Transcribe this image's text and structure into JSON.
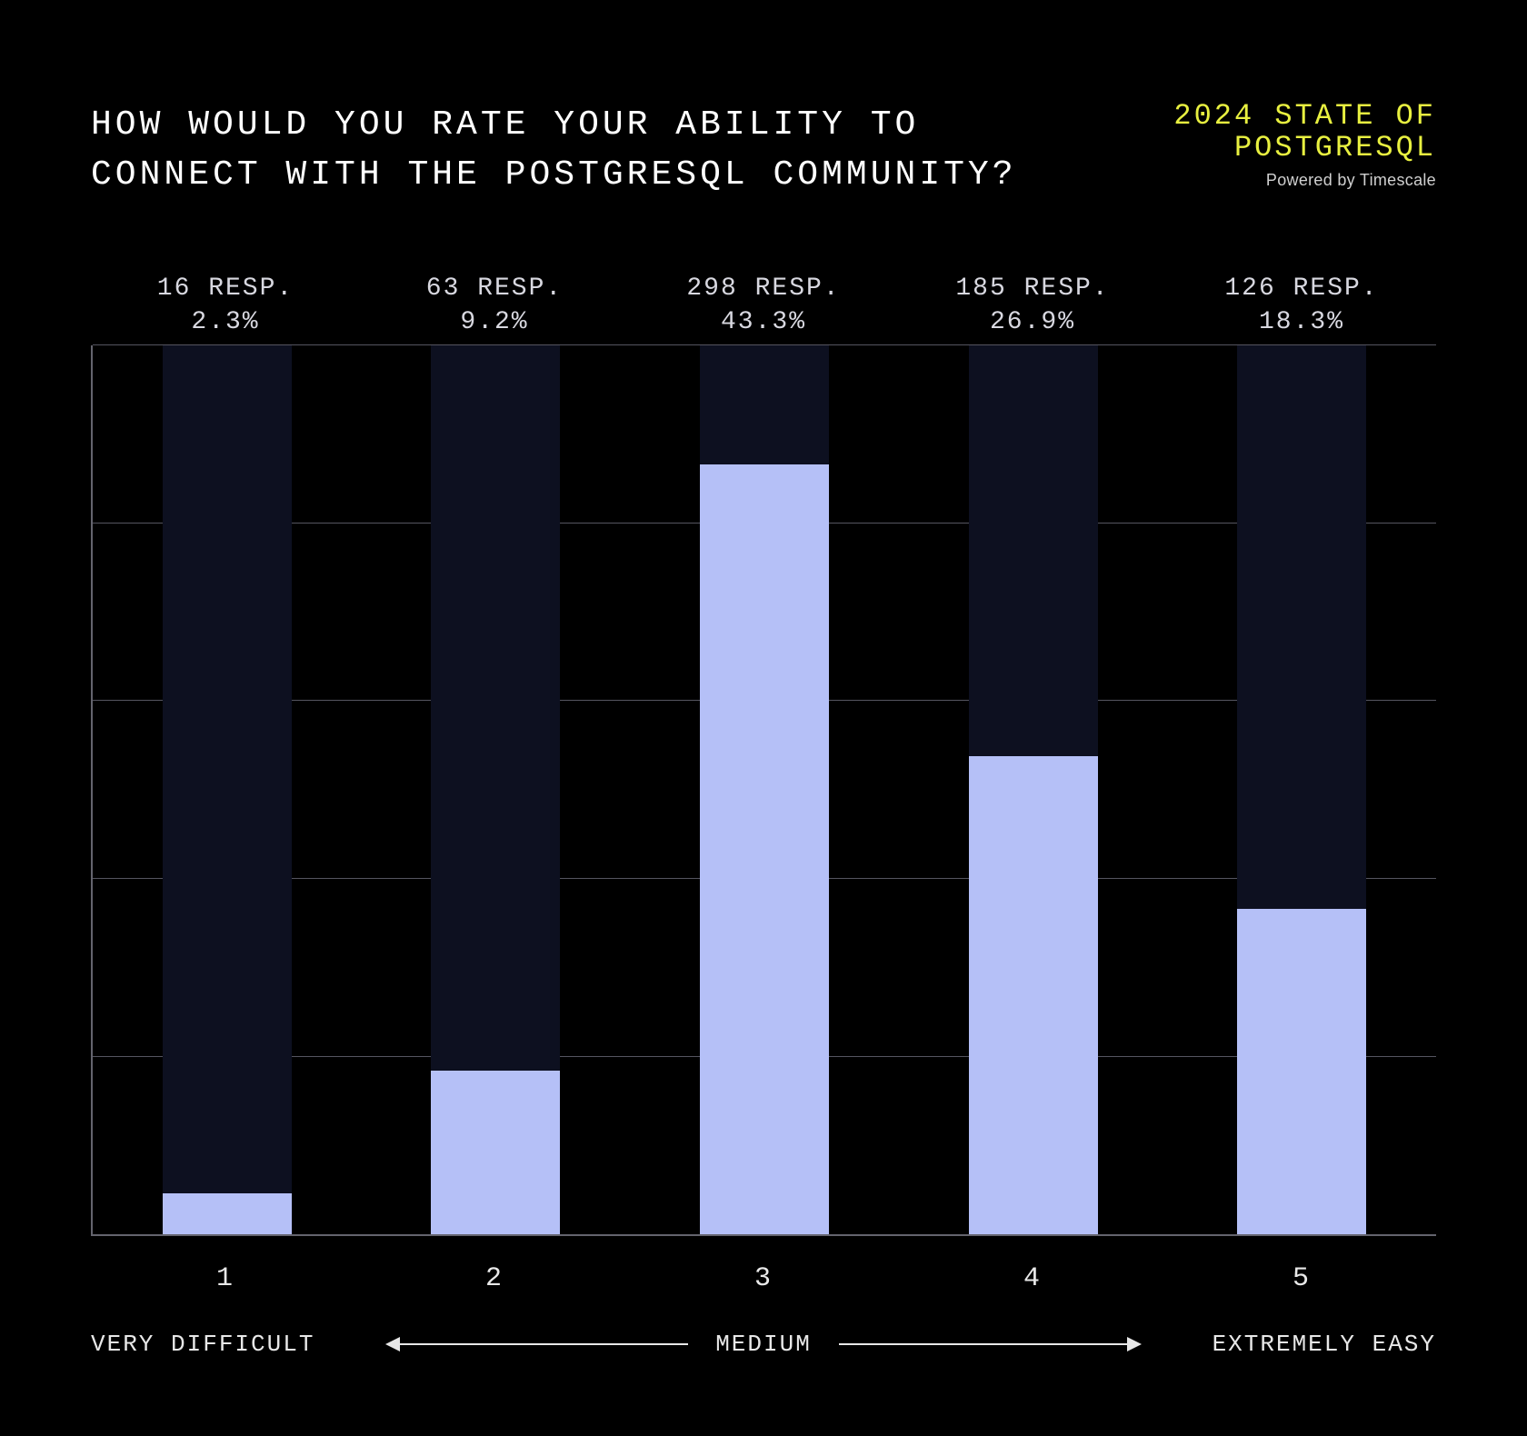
{
  "title": "HOW WOULD YOU RATE YOUR ABILITY TO CONNECT WITH THE POSTGRESQL COMMUNITY?",
  "brand": {
    "line1": "2024 STATE OF",
    "line2": "POSTGRESQL",
    "subtitle": "Powered by Timescale",
    "color": "#e8f040"
  },
  "chart": {
    "type": "bar",
    "background_color": "#000000",
    "bar_bg_color": "#0d1020",
    "bar_color": "#b5c0f7",
    "grid_color": "#555560",
    "axis_color": "#64646e",
    "text_color": "#ffffff",
    "label_color": "#d8d8e0",
    "bar_width_pct": 48,
    "y_max": 50,
    "gridline_step": 10,
    "gridline_count": 5,
    "bars": [
      {
        "tick": "1",
        "resp": "16 RESP.",
        "pct_label": "2.3%",
        "value": 2.3
      },
      {
        "tick": "2",
        "resp": "63 RESP.",
        "pct_label": "9.2%",
        "value": 9.2
      },
      {
        "tick": "3",
        "resp": "298 RESP.",
        "pct_label": "43.3%",
        "value": 43.3
      },
      {
        "tick": "4",
        "resp": "185 RESP.",
        "pct_label": "26.9%",
        "value": 26.9
      },
      {
        "tick": "5",
        "resp": "126 RESP.",
        "pct_label": "18.3%",
        "value": 18.3
      }
    ],
    "scale": {
      "left": "VERY DIFFICULT",
      "mid": "MEDIUM",
      "right": "EXTREMELY EASY"
    },
    "title_fontsize": 38,
    "label_fontsize": 28,
    "tick_fontsize": 30
  }
}
